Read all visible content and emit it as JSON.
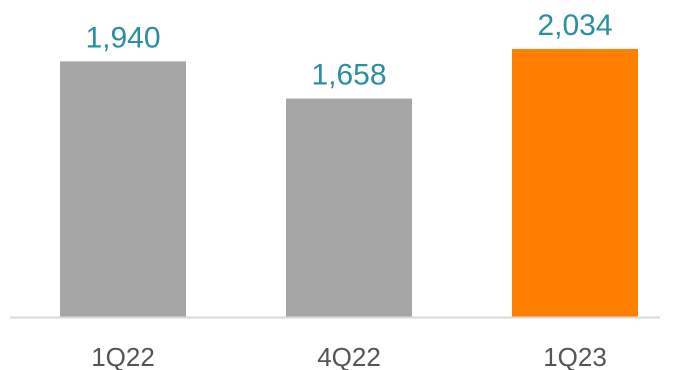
{
  "chart_data": {
    "type": "bar",
    "categories": [
      "1Q22",
      "4Q22",
      "1Q23"
    ],
    "values": [
      1940,
      1658,
      2034
    ],
    "value_labels": [
      "1,940",
      "1,658",
      "2,034"
    ],
    "title": "",
    "xlabel": "",
    "ylabel": "",
    "ylim": [
      0,
      2034
    ],
    "grid": false,
    "legend": "none",
    "colors": {
      "default_bar": "#a6a6a6",
      "highlight_bar": "#ff8000",
      "value_label": "#2a8fa0",
      "axis": "#d9d9d9",
      "tick_label": "#555555"
    },
    "highlight_index": 2
  }
}
